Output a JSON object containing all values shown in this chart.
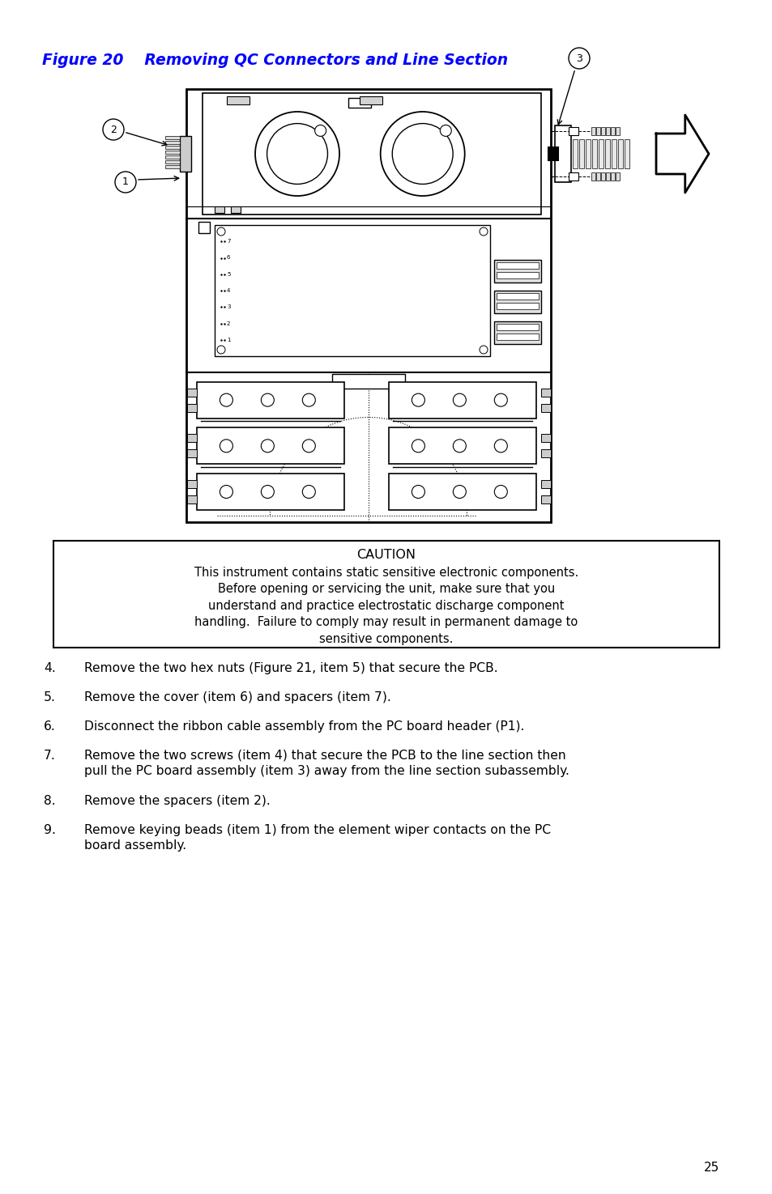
{
  "title": "Figure 20    Removing QC Connectors and Line Section",
  "title_color": "#0000FF",
  "title_fontsize": 13.5,
  "caution_title": "CAUTION",
  "caution_lines": [
    "This instrument contains static sensitive electronic components.",
    "Before opening or servicing the unit, make sure that you",
    "understand and practice electrostatic discharge component",
    "handling.  Failure to comply may result in permanent damage to",
    "sensitive components."
  ],
  "numbered_items": [
    {
      "num": "4.",
      "text": "Remove the two hex nuts (Figure 21, item 5) that secure the PCB."
    },
    {
      "num": "5.",
      "text": "Remove the cover (item 6) and spacers (item 7)."
    },
    {
      "num": "6.",
      "text": "Disconnect the ribbon cable assembly from the PC board header (P1)."
    },
    {
      "num": "7.",
      "text": "Remove the two screws (item 4) that secure the PCB to the line section then\npull the PC board assembly (item 3) away from the line section subassembly."
    },
    {
      "num": "8.",
      "text": "Remove the spacers (item 2)."
    },
    {
      "num": "9.",
      "text": "Remove keying beads (item 1) from the element wiper contacts on the PC\nboard assembly."
    }
  ],
  "page_number": "25",
  "bg": "#ffffff"
}
